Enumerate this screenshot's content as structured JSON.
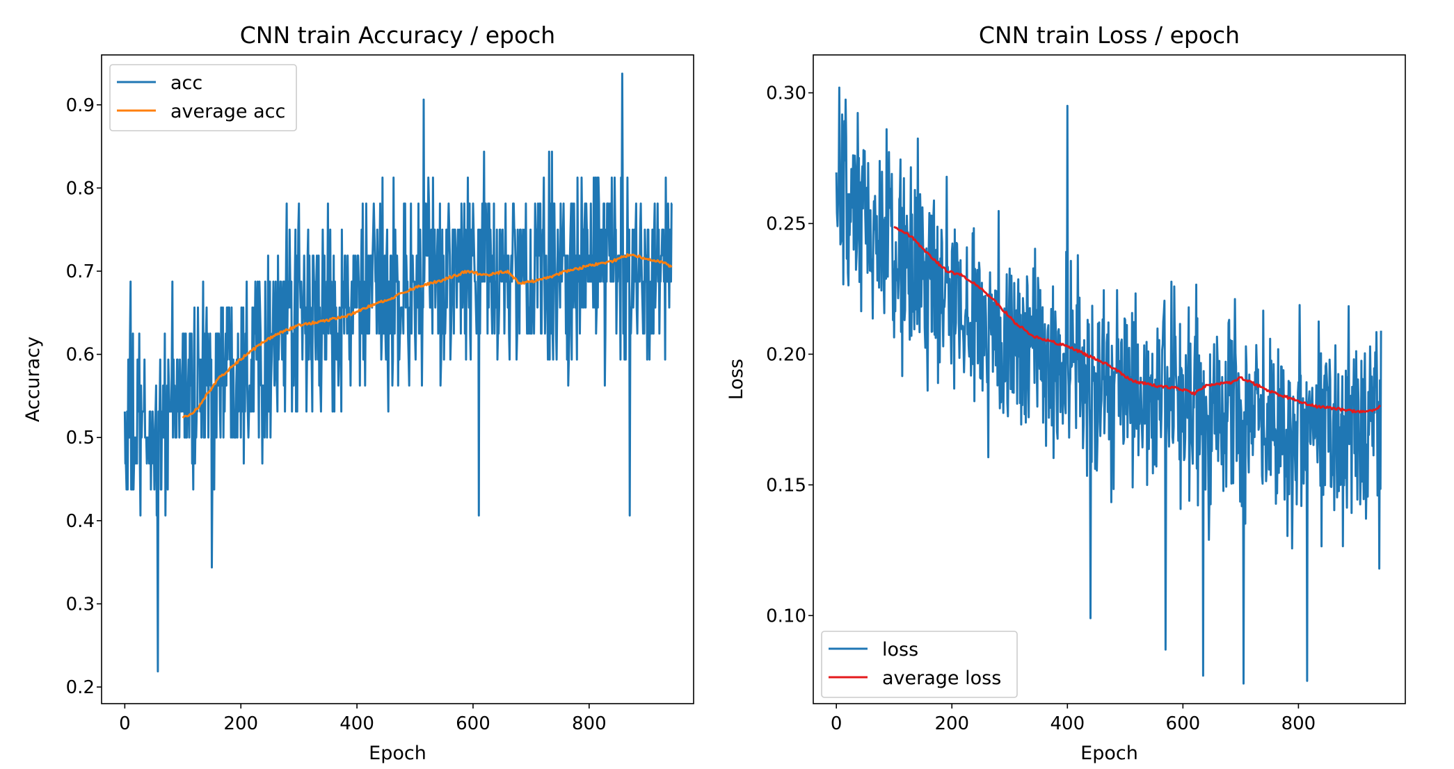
{
  "chart_data": [
    {
      "type": "line",
      "title": "CNN train Accuracy / epoch",
      "xlabel": "Epoch",
      "ylabel": "Accuracy",
      "xlim": [
        -40,
        980
      ],
      "ylim": [
        0.18,
        0.96
      ],
      "xticks": [
        0,
        200,
        400,
        600,
        800
      ],
      "yticks": [
        0.2,
        0.3,
        0.4,
        0.5,
        0.6,
        0.7,
        0.8,
        0.9
      ],
      "legend_position": "upper-left",
      "grid": false,
      "series": [
        {
          "name": "acc",
          "color": "#1f77b4",
          "kind": "noisy",
          "x_range": [
            0,
            943
          ],
          "trend_keyframes": [
            [
              0,
              0.5
            ],
            [
              50,
              0.5
            ],
            [
              100,
              0.55
            ],
            [
              200,
              0.6
            ],
            [
              300,
              0.64
            ],
            [
              400,
              0.66
            ],
            [
              500,
              0.68
            ],
            [
              600,
              0.7
            ],
            [
              700,
              0.69
            ],
            [
              800,
              0.71
            ],
            [
              943,
              0.71
            ]
          ],
          "noise_amplitude": 0.09,
          "value_levels": [
            0.3125,
            0.34375,
            0.375,
            0.40625,
            0.4375,
            0.46875,
            0.5,
            0.53125,
            0.5625,
            0.59375,
            0.625,
            0.65625,
            0.6875,
            0.71875,
            0.75,
            0.78125,
            0.8125,
            0.84375,
            0.875,
            0.90625,
            0.9375
          ],
          "extremes": [
            [
              57,
              0.21875
            ],
            [
              10,
              0.6875
            ],
            [
              150,
              0.34375
            ],
            [
              515,
              0.90625
            ],
            [
              857,
              0.9375
            ],
            [
              610,
              0.40625
            ],
            [
              870,
              0.40625
            ],
            [
              940,
              0.75
            ]
          ]
        },
        {
          "name": "average acc",
          "color": "#ff7f0e",
          "kind": "smooth",
          "points": [
            [
              100,
              0.525
            ],
            [
              110,
              0.525
            ],
            [
              125,
              0.535
            ],
            [
              140,
              0.55
            ],
            [
              160,
              0.57
            ],
            [
              185,
              0.585
            ],
            [
              210,
              0.6
            ],
            [
              240,
              0.615
            ],
            [
              265,
              0.625
            ],
            [
              300,
              0.635
            ],
            [
              340,
              0.64
            ],
            [
              380,
              0.645
            ],
            [
              410,
              0.655
            ],
            [
              450,
              0.665
            ],
            [
              500,
              0.68
            ],
            [
              550,
              0.69
            ],
            [
              590,
              0.7
            ],
            [
              620,
              0.695
            ],
            [
              660,
              0.7
            ],
            [
              680,
              0.685
            ],
            [
              720,
              0.69
            ],
            [
              760,
              0.7
            ],
            [
              810,
              0.708
            ],
            [
              840,
              0.712
            ],
            [
              870,
              0.72
            ],
            [
              900,
              0.715
            ],
            [
              930,
              0.71
            ],
            [
              943,
              0.705
            ]
          ]
        }
      ]
    },
    {
      "type": "line",
      "title": "CNN train Loss / epoch",
      "xlabel": "Epoch",
      "ylabel": "Loss",
      "xlim": [
        -40,
        985
      ],
      "ylim": [
        0.0663,
        0.3145
      ],
      "xticks": [
        0,
        200,
        400,
        600,
        800
      ],
      "yticks": [
        0.1,
        0.15,
        0.2,
        0.25,
        0.3
      ],
      "legend_position": "lower-left",
      "grid": false,
      "series": [
        {
          "name": "loss",
          "color": "#1f77b4",
          "kind": "noisy",
          "x_range": [
            0,
            943
          ],
          "trend_keyframes": [
            [
              0,
              0.255
            ],
            [
              50,
              0.248
            ],
            [
              100,
              0.24
            ],
            [
              200,
              0.22
            ],
            [
              300,
              0.205
            ],
            [
              400,
              0.195
            ],
            [
              500,
              0.185
            ],
            [
              600,
              0.18
            ],
            [
              700,
              0.178
            ],
            [
              800,
              0.175
            ],
            [
              943,
              0.175
            ]
          ],
          "noise_amplitude": 0.03,
          "value_levels": [],
          "extremes": [
            [
              5,
              0.302
            ],
            [
              2,
              0.249
            ],
            [
              440,
              0.099
            ],
            [
              570,
              0.087
            ],
            [
              635,
              0.077
            ],
            [
              705,
              0.074
            ],
            [
              815,
              0.075
            ],
            [
              400,
              0.295
            ],
            [
              940,
              0.118
            ],
            [
              943,
              0.209
            ]
          ]
        },
        {
          "name": "average loss",
          "color": "#e41a1c",
          "kind": "smooth",
          "points": [
            [
              100,
              0.249
            ],
            [
              130,
              0.245
            ],
            [
              160,
              0.238
            ],
            [
              190,
              0.232
            ],
            [
              220,
              0.23
            ],
            [
              250,
              0.225
            ],
            [
              280,
              0.219
            ],
            [
              310,
              0.212
            ],
            [
              340,
              0.207
            ],
            [
              370,
              0.205
            ],
            [
              400,
              0.203
            ],
            [
              430,
              0.2
            ],
            [
              470,
              0.196
            ],
            [
              510,
              0.19
            ],
            [
              550,
              0.188
            ],
            [
              590,
              0.187
            ],
            [
              620,
              0.185
            ],
            [
              640,
              0.188
            ],
            [
              680,
              0.189
            ],
            [
              700,
              0.191
            ],
            [
              730,
              0.188
            ],
            [
              760,
              0.185
            ],
            [
              800,
              0.182
            ],
            [
              830,
              0.18
            ],
            [
              870,
              0.179
            ],
            [
              900,
              0.178
            ],
            [
              920,
              0.178
            ],
            [
              943,
              0.18
            ]
          ]
        }
      ]
    }
  ]
}
